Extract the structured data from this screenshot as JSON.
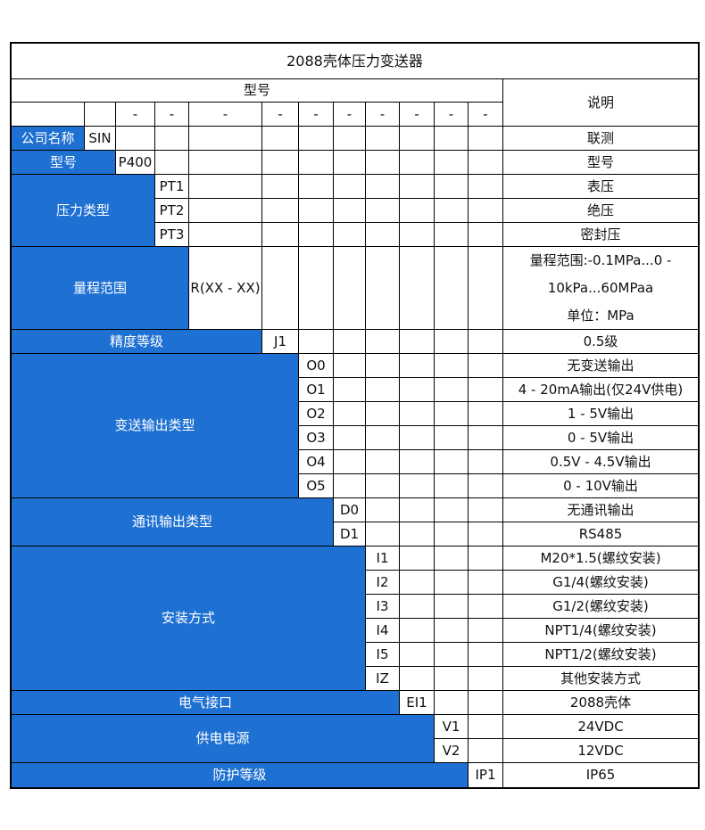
{
  "title": "2088壳体压力变送器",
  "header": {
    "model_label": "型号",
    "desc_label": "说明",
    "separator": "-"
  },
  "groups": [
    {
      "label": "公司名称",
      "options": [
        {
          "code": "SIN",
          "desc": "联测"
        }
      ]
    },
    {
      "label": "型号",
      "options": [
        {
          "code": "P400",
          "desc": "型号"
        }
      ]
    },
    {
      "label": "压力类型",
      "options": [
        {
          "code": "PT1",
          "desc": "表压"
        },
        {
          "code": "PT2",
          "desc": "绝压"
        },
        {
          "code": "PT3",
          "desc": "密封压"
        }
      ]
    },
    {
      "label": "量程范围",
      "options": [
        {
          "code": "R(XX - XX)",
          "desc": "量程范围:-0.1MPa...0 - 10kPa...60MPaa\n单位：MPa"
        }
      ]
    },
    {
      "label": "精度等级",
      "options": [
        {
          "code": "J1",
          "desc": "0.5级"
        }
      ]
    },
    {
      "label": "变送输出类型",
      "options": [
        {
          "code": "O0",
          "desc": "无变送输出"
        },
        {
          "code": "O1",
          "desc": "4 - 20mA输出(仅24V供电)"
        },
        {
          "code": "O2",
          "desc": "1 - 5V输出"
        },
        {
          "code": "O3",
          "desc": "0 - 5V输出"
        },
        {
          "code": "O4",
          "desc": "0.5V - 4.5V输出"
        },
        {
          "code": "O5",
          "desc": "0 - 10V输出"
        }
      ]
    },
    {
      "label": "通讯输出类型",
      "options": [
        {
          "code": "D0",
          "desc": "无通讯输出"
        },
        {
          "code": "D1",
          "desc": "RS485"
        }
      ]
    },
    {
      "label": "安装方式",
      "options": [
        {
          "code": "I1",
          "desc": "M20*1.5(螺纹安装)"
        },
        {
          "code": "I2",
          "desc": "G1/4(螺纹安装)"
        },
        {
          "code": "I3",
          "desc": "G1/2(螺纹安装)"
        },
        {
          "code": "I4",
          "desc": "NPT1/4(螺纹安装)"
        },
        {
          "code": "I5",
          "desc": "NPT1/2(螺纹安装)"
        },
        {
          "code": "IZ",
          "desc": "其他安装方式"
        }
      ]
    },
    {
      "label": "电气接口",
      "options": [
        {
          "code": "EI1",
          "desc": "2088壳体"
        }
      ]
    },
    {
      "label": "供电电源",
      "options": [
        {
          "code": "V1",
          "desc": "24VDC"
        },
        {
          "code": "V2",
          "desc": "12VDC"
        }
      ]
    },
    {
      "label": "防护等级",
      "options": [
        {
          "code": "IP1",
          "desc": "IP65"
        }
      ]
    }
  ],
  "colors": {
    "accent": "#1e70d2",
    "border": "#000000",
    "text": "#111111",
    "label_text": "#ffffff"
  }
}
